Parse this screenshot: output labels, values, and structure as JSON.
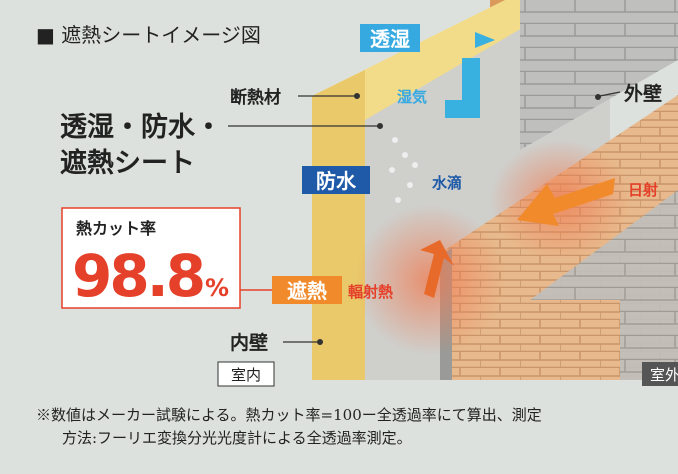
{
  "header": {
    "title": "■ 遮熱シートイメージ図"
  },
  "labels": {
    "breathable": "透湿",
    "insulation": "断熱材",
    "moisture": "湿気",
    "outer_wall": "外壁",
    "sheet_line1": "透湿・防水・",
    "sheet_line2": "遮熱シート",
    "waterproof": "防水",
    "droplets": "水滴",
    "sunlight": "日射",
    "heat_shield": "遮熱",
    "radiant_heat": "輻射熱",
    "inner_wall": "内壁",
    "indoor": "室内",
    "outdoor": "室外"
  },
  "stat": {
    "label": "熱カット率",
    "value": 98.8,
    "unit": "%"
  },
  "footnote": {
    "lines": [
      "※数値はメーカー試験による。熱カット率=100ー全透過率にて算出、測定",
      "方法:フーリエ変換分光光度計による全透過率測定。"
    ]
  }
}
